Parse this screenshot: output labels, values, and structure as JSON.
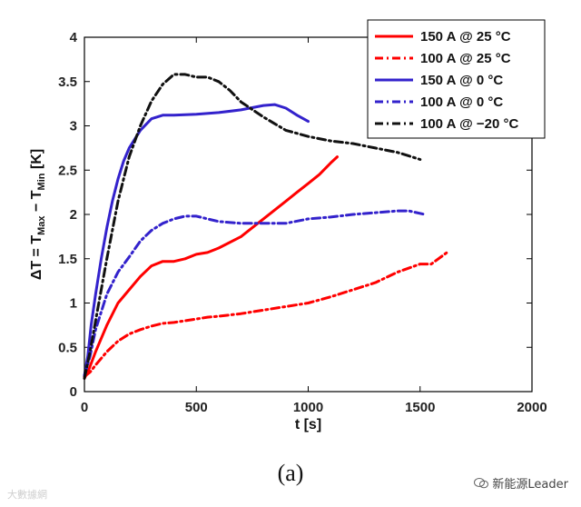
{
  "chart_data": {
    "type": "line",
    "title": "",
    "xlabel": "t [s]",
    "ylabel_parts": [
      "ΔT = T",
      "Max",
      " − T",
      "Min",
      " [K]"
    ],
    "xlim": [
      0,
      2000
    ],
    "ylim": [
      0,
      4
    ],
    "xticks": [
      0,
      500,
      1000,
      1500,
      2000
    ],
    "yticks": [
      0,
      0.5,
      1,
      1.5,
      2,
      2.5,
      3,
      3.5,
      4
    ],
    "xtick_labels": [
      "0",
      "500",
      "1000",
      "1500",
      "2000"
    ],
    "ytick_labels": [
      "0",
      "0.5",
      "1",
      "1.5",
      "2",
      "2.5",
      "3",
      "3.5",
      "4"
    ],
    "grid": false,
    "legend_position": "top-right",
    "series": [
      {
        "name": "150 A @ 25 °C",
        "color": "#ff0000",
        "style": "solid",
        "x": [
          0,
          20,
          50,
          100,
          150,
          200,
          250,
          300,
          350,
          400,
          450,
          500,
          550,
          600,
          700,
          800,
          900,
          950,
          1000,
          1050,
          1100,
          1130
        ],
        "y": [
          0.15,
          0.25,
          0.45,
          0.75,
          1.0,
          1.15,
          1.3,
          1.42,
          1.47,
          1.47,
          1.5,
          1.55,
          1.57,
          1.62,
          1.75,
          1.95,
          2.15,
          2.25,
          2.35,
          2.45,
          2.58,
          2.65
        ]
      },
      {
        "name": "100 A @ 25 °C",
        "color": "#ff0000",
        "style": "dashdot",
        "x": [
          0,
          25,
          50,
          100,
          150,
          200,
          250,
          300,
          350,
          400,
          450,
          500,
          550,
          600,
          700,
          800,
          900,
          1000,
          1100,
          1200,
          1300,
          1400,
          1500,
          1550,
          1620
        ],
        "y": [
          0.17,
          0.22,
          0.3,
          0.45,
          0.57,
          0.65,
          0.7,
          0.74,
          0.77,
          0.78,
          0.8,
          0.82,
          0.84,
          0.85,
          0.88,
          0.92,
          0.96,
          1.0,
          1.07,
          1.15,
          1.23,
          1.35,
          1.44,
          1.44,
          1.57
        ]
      },
      {
        "name": "150 A @ 0 °C",
        "color": "#3322cc",
        "style": "solid",
        "x": [
          0,
          15,
          30,
          50,
          75,
          100,
          125,
          150,
          175,
          200,
          250,
          300,
          350,
          400,
          500,
          600,
          700,
          800,
          850,
          900,
          950,
          1000
        ],
        "y": [
          0.18,
          0.4,
          0.75,
          1.1,
          1.5,
          1.85,
          2.15,
          2.4,
          2.6,
          2.75,
          2.95,
          3.08,
          3.12,
          3.12,
          3.13,
          3.15,
          3.18,
          3.23,
          3.24,
          3.2,
          3.12,
          3.05
        ]
      },
      {
        "name": "100 A @ 0 °C",
        "color": "#3322cc",
        "style": "dashdot",
        "x": [
          0,
          25,
          50,
          100,
          150,
          200,
          250,
          300,
          350,
          400,
          450,
          500,
          550,
          600,
          700,
          800,
          900,
          1000,
          1100,
          1200,
          1300,
          1400,
          1450,
          1520
        ],
        "y": [
          0.18,
          0.4,
          0.7,
          1.1,
          1.35,
          1.52,
          1.7,
          1.82,
          1.9,
          1.95,
          1.98,
          1.98,
          1.95,
          1.92,
          1.9,
          1.9,
          1.9,
          1.95,
          1.97,
          2.0,
          2.02,
          2.04,
          2.04,
          2.0
        ]
      },
      {
        "name": "100 A @ −20 °C",
        "color": "#111111",
        "style": "dashdot",
        "x": [
          0,
          25,
          50,
          100,
          150,
          200,
          250,
          300,
          350,
          400,
          450,
          500,
          550,
          600,
          650,
          700,
          800,
          900,
          1000,
          1100,
          1200,
          1300,
          1400,
          1450,
          1500
        ],
        "y": [
          0.15,
          0.45,
          0.8,
          1.5,
          2.15,
          2.65,
          3.0,
          3.28,
          3.47,
          3.58,
          3.58,
          3.55,
          3.55,
          3.5,
          3.4,
          3.27,
          3.1,
          2.95,
          2.88,
          2.83,
          2.8,
          2.75,
          2.7,
          2.66,
          2.62
        ]
      }
    ]
  },
  "caption": "(a)",
  "watermark_right": "新能源Leader",
  "watermark_left": "大數據網"
}
